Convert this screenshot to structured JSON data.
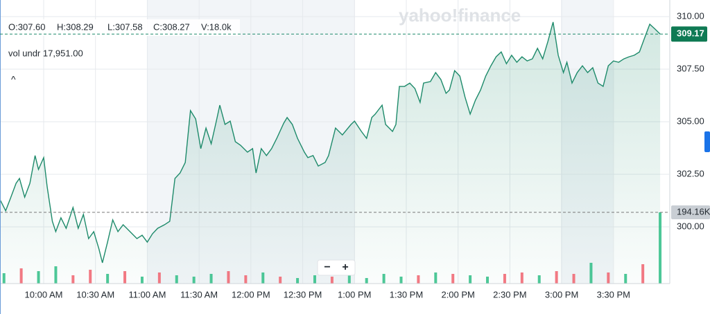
{
  "chart_data": {
    "type": "line",
    "annotations": [
      "O:307.60",
      "H:308.29",
      "L:307.58",
      "C:308.27",
      "V:18.0k"
    ],
    "volume_note": "vol undr 17,951.00",
    "watermark": "yahoo!finance",
    "controls": [
      "−",
      "+"
    ],
    "last_price": 309.17,
    "last_price_label": "309.17",
    "xlim": [
      574.7,
      962.2
    ],
    "ylim": [
      297.3,
      310.79
    ],
    "y2lim": [
      0,
      772900
    ],
    "grid": true,
    "xticks": [
      {
        "value": 600,
        "label": "10:00 AM"
      },
      {
        "value": 630,
        "label": "10:30 AM"
      },
      {
        "value": 660,
        "label": "11:00 AM"
      },
      {
        "value": 690,
        "label": "11:30 AM"
      },
      {
        "value": 720,
        "label": "12:00 PM"
      },
      {
        "value": 750,
        "label": "12:30 PM"
      },
      {
        "value": 780,
        "label": "1:00 PM"
      },
      {
        "value": 810,
        "label": "1:30 PM"
      },
      {
        "value": 840,
        "label": "2:00 PM"
      },
      {
        "value": 870,
        "label": "2:30 PM"
      },
      {
        "value": 900,
        "label": "3:00 PM"
      },
      {
        "value": 930,
        "label": "3:30 PM"
      }
    ],
    "yticks": [
      {
        "value": 300,
        "label": "300.00"
      },
      {
        "value": 302.5,
        "label": "302.50"
      },
      {
        "value": 305,
        "label": "305.00"
      },
      {
        "value": 307.5,
        "label": "307.50"
      },
      {
        "value": 310,
        "label": "310.00"
      }
    ],
    "series": [
      {
        "name": "Price",
        "color": "#1d8a6a",
        "x": [
          575,
          578,
          581,
          584,
          586,
          589,
          592,
          595,
          597,
          600,
          602,
          605,
          607,
          610,
          613,
          617,
          620,
          623,
          626,
          629,
          632,
          634,
          637,
          640,
          643,
          646,
          650,
          654,
          657,
          660,
          663,
          666,
          670,
          673,
          676,
          679,
          682,
          685,
          688,
          691,
          694,
          697,
          700,
          702,
          705,
          708,
          711,
          714,
          718,
          721,
          723,
          726,
          729,
          732,
          735,
          739,
          741,
          744,
          747,
          751,
          753,
          756,
          759,
          763,
          765,
          769,
          773,
          778,
          780,
          784,
          787,
          790,
          792,
          796,
          798,
          802,
          804,
          806,
          809,
          812,
          815,
          818,
          820,
          824,
          827,
          830,
          833,
          835,
          838,
          841,
          844,
          847,
          850,
          853,
          856,
          859,
          862,
          865,
          868,
          871,
          874,
          877,
          880,
          883,
          886,
          889,
          892,
          895,
          898,
          901,
          903,
          906,
          909,
          912,
          915,
          918,
          921,
          924,
          927,
          930,
          933,
          936,
          939,
          942,
          945,
          948,
          951,
          954,
          957
        ],
        "values": [
          301.25,
          300.76,
          301.41,
          302.07,
          302.3,
          301.41,
          302.07,
          303.39,
          302.73,
          303.29,
          301.91,
          300.26,
          299.77,
          300.43,
          299.93,
          300.92,
          299.93,
          300.59,
          299.44,
          299.77,
          298.95,
          298.29,
          299.27,
          300.33,
          299.77,
          300.1,
          299.77,
          299.44,
          299.6,
          299.27,
          299.67,
          299.93,
          300.1,
          300.26,
          302.3,
          302.56,
          303.06,
          305.53,
          305.13,
          303.72,
          304.7,
          303.95,
          305.03,
          305.79,
          304.87,
          305.03,
          304.05,
          303.88,
          303.55,
          303.72,
          302.56,
          303.72,
          303.39,
          303.72,
          304.21,
          304.93,
          305.2,
          304.87,
          304.21,
          303.55,
          303.29,
          303.39,
          302.89,
          303.06,
          303.39,
          304.7,
          304.37,
          304.87,
          305.03,
          304.54,
          304.21,
          305.2,
          305.36,
          305.79,
          304.87,
          304.54,
          304.87,
          306.68,
          306.68,
          306.84,
          306.58,
          305.92,
          306.84,
          306.91,
          307.34,
          307.01,
          306.35,
          306.51,
          307.43,
          307.17,
          306.18,
          305.36,
          306.02,
          306.51,
          307.17,
          307.66,
          308.09,
          308.32,
          307.76,
          308.16,
          307.83,
          308.09,
          307.89,
          307.99,
          308.49,
          307.99,
          308.82,
          309.74,
          308.16,
          307.34,
          307.83,
          306.84,
          307.34,
          307.66,
          307.34,
          307.57,
          306.84,
          306.68,
          307.66,
          307.89,
          307.83,
          307.99,
          308.09,
          308.16,
          308.32,
          308.98,
          309.64,
          309.41,
          309.17
        ]
      },
      {
        "name": "Volume",
        "axis": "y2",
        "x": [
          577,
          587,
          597,
          607,
          617,
          627,
          637,
          647,
          657,
          667,
          677,
          687,
          697,
          707,
          717,
          727,
          737,
          747,
          757,
          767,
          777,
          787,
          797,
          807,
          817,
          827,
          837,
          847,
          857,
          867,
          877,
          887,
          897,
          907,
          917,
          927,
          937,
          947,
          957
        ],
        "values": [
          28300,
          41500,
          33900,
          47100,
          22600,
          37700,
          26400,
          33900,
          18900,
          30200,
          22600,
          18900,
          26400,
          33900,
          22600,
          30200,
          18900,
          15100,
          22600,
          18900,
          22600,
          15100,
          26400,
          18900,
          22600,
          30200,
          26400,
          22600,
          18900,
          26400,
          30200,
          22600,
          33900,
          26400,
          56600,
          30200,
          26400,
          52800,
          194160
        ],
        "colors": [
          "#2ebd85",
          "#f0616d",
          "#2ebd85",
          "#2ebd85",
          "#f0616d",
          "#f0616d",
          "#2ebd85",
          "#f0616d",
          "#2ebd85",
          "#f0616d",
          "#2ebd85",
          "#2ebd85",
          "#2ebd85",
          "#f0616d",
          "#f0616d",
          "#2ebd85",
          "#f0616d",
          "#2ebd85",
          "#2ebd85",
          "#f0616d",
          "#2ebd85",
          "#2ebd85",
          "#2ebd85",
          "#2ebd85",
          "#f0616d",
          "#2ebd85",
          "#f0616d",
          "#2ebd85",
          "#2ebd85",
          "#f0616d",
          "#f0616d",
          "#2ebd85",
          "#f0616d",
          "#f0616d",
          "#2ebd85",
          "#f0616d",
          "#2ebd85",
          "#f0616d",
          "#2ebd85"
        ],
        "value_labels": [
          null,
          null,
          null,
          null,
          null,
          null,
          null,
          null,
          null,
          null,
          null,
          null,
          null,
          null,
          null,
          null,
          null,
          null,
          null,
          null,
          null,
          null,
          null,
          null,
          null,
          null,
          null,
          null,
          null,
          null,
          null,
          null,
          null,
          null,
          null,
          null,
          null,
          null,
          "194.16K"
        ]
      }
    ]
  }
}
